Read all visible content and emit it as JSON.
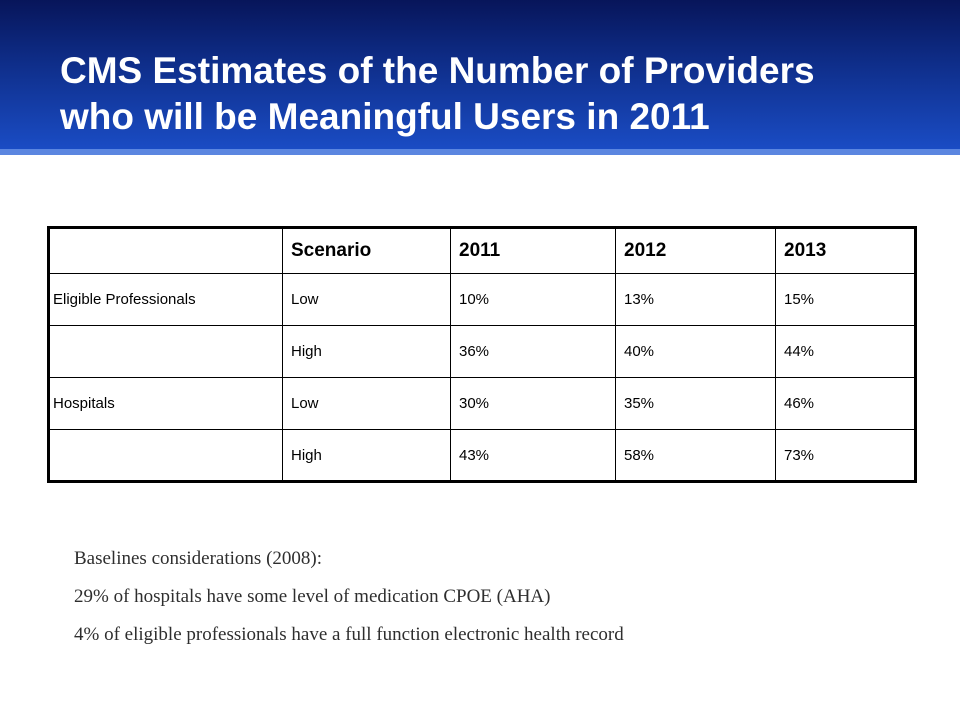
{
  "slide": {
    "title_lines": [
      "CMS Estimates of the Number of Providers",
      "who will be Meaningful Users in 2011"
    ]
  },
  "table": {
    "headers": [
      "",
      "Scenario",
      "2011",
      "2012",
      "2013"
    ],
    "rows": [
      [
        "Eligible Professionals",
        "Low",
        "10%",
        "13%",
        "15%"
      ],
      [
        "",
        "High",
        "36%",
        "40%",
        "44%"
      ],
      [
        "Hospitals",
        "Low",
        "30%",
        "35%",
        "46%"
      ],
      [
        "",
        "High",
        "43%",
        "58%",
        "73%"
      ]
    ]
  },
  "notes": [
    "Baselines considerations (2008):",
    "29% of hospitals have some level of medication CPOE (AHA)",
    "4% of eligible professionals have a full function electronic health record"
  ],
  "colors": {
    "title_bar_dark": "#07155a",
    "title_bar_light": "#1a4cc4",
    "title_bar_edge": "#5b86e0"
  }
}
